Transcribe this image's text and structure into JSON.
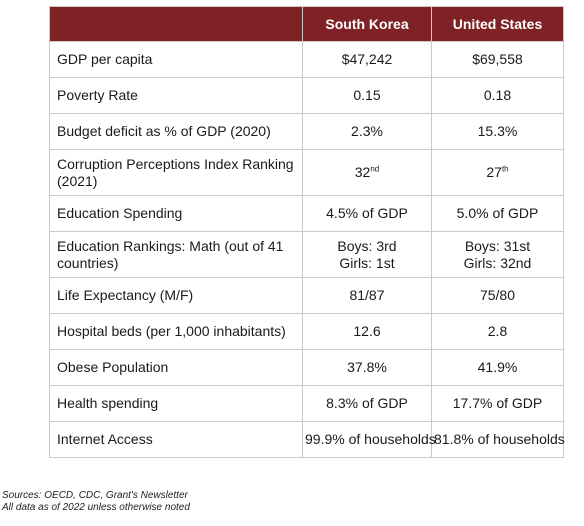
{
  "table": {
    "columns": [
      "",
      "South Korea",
      "United States"
    ],
    "rows": [
      {
        "label": [
          "GDP per capita"
        ],
        "korea": [
          "$47,242"
        ],
        "us": [
          "$69,558"
        ],
        "h": 36
      },
      {
        "label": [
          "Poverty Rate"
        ],
        "korea": [
          "0.15"
        ],
        "us": [
          "0.18"
        ],
        "h": 36
      },
      {
        "label": [
          "Budget deficit as % of GDP (2020)"
        ],
        "korea": [
          "2.3%"
        ],
        "us": [
          "15.3%"
        ],
        "h": 36
      },
      {
        "label": [
          "Corruption Perceptions Index Ranking",
          "(2021)"
        ],
        "korea_rank": {
          "num": "32",
          "sup": "nd"
        },
        "us_rank": {
          "num": "27",
          "sup": "th"
        },
        "h": 46
      },
      {
        "label": [
          "Education Spending"
        ],
        "korea": [
          "4.5% of GDP"
        ],
        "us": [
          "5.0% of GDP"
        ],
        "h": 36
      },
      {
        "label": [
          "Education Rankings: Math (out of 41",
          "countries)"
        ],
        "korea": [
          "Boys: 3rd",
          "Girls: 1st"
        ],
        "us": [
          "Boys: 31st",
          "Girls: 32nd"
        ],
        "h": 46
      },
      {
        "label": [
          "Life Expectancy (M/F)"
        ],
        "korea": [
          "81/87"
        ],
        "us": [
          "75/80"
        ],
        "h": 36
      },
      {
        "label": [
          "Hospital beds (per 1,000 inhabitants)"
        ],
        "korea": [
          "12.6"
        ],
        "us": [
          "2.8"
        ],
        "h": 36
      },
      {
        "label": [
          "Obese Population"
        ],
        "korea": [
          "37.8%"
        ],
        "us": [
          "41.9%"
        ],
        "h": 36
      },
      {
        "label": [
          "Health spending"
        ],
        "korea": [
          "8.3% of GDP"
        ],
        "us": [
          "17.7% of GDP"
        ],
        "h": 36
      },
      {
        "label": [
          "Internet Access"
        ],
        "korea": [
          "99.9% of households"
        ],
        "us": [
          "81.8% of households"
        ],
        "h": 36
      }
    ]
  },
  "footnotes": {
    "sources": "Sources: OECD, CDC, Grant's Newsletter",
    "asof": "All data as of 2022 unless otherwise noted"
  },
  "colors": {
    "header_bg": "#7f2226",
    "header_text": "#ffffff",
    "grid": "#c9c9c9"
  }
}
